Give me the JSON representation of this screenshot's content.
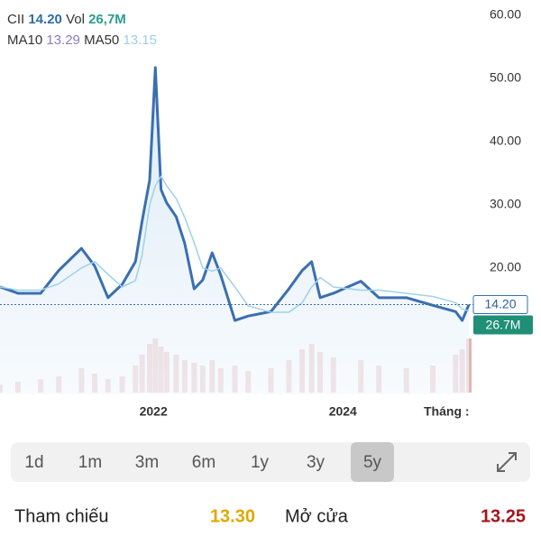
{
  "header": {
    "ticker": "CII",
    "price": "14.20",
    "vol_label": "Vol",
    "vol": "26,7M",
    "ma10_label": "MA10",
    "ma10": "13.29",
    "ma50_label": "MA50",
    "ma50": "13.15"
  },
  "chart_data": {
    "type": "line",
    "x": [
      2020.38,
      2020.57,
      2020.81,
      2021.0,
      2021.24,
      2021.38,
      2021.52,
      2021.67,
      2021.81,
      2021.88,
      2021.96,
      2022.02,
      2022.08,
      2022.14,
      2022.24,
      2022.33,
      2022.43,
      2022.52,
      2022.62,
      2022.71,
      2022.86,
      2023.0,
      2023.24,
      2023.43,
      2023.57,
      2023.67,
      2023.76,
      2023.9,
      2024.19,
      2024.38,
      2024.67,
      2024.95,
      2025.19,
      2025.26,
      2025.33
    ],
    "series": [
      {
        "name": "CII",
        "color": "#3a6fb0",
        "values": [
          17,
          16,
          16,
          19.6,
          23.1,
          20.3,
          15.3,
          17.4,
          21,
          27.4,
          33.9,
          51.7,
          32.4,
          30.3,
          28.1,
          23.9,
          16.7,
          18.1,
          22.4,
          18.9,
          11.7,
          12.4,
          13.1,
          16.7,
          19.6,
          21,
          15.3,
          16,
          17.9,
          15.3,
          15.3,
          14.1,
          13.1,
          11.7,
          14.2
        ]
      },
      {
        "name": "MA50",
        "color": "#9fd0ea",
        "values": [
          17,
          16.5,
          16.5,
          17.5,
          20,
          21,
          19,
          17,
          18,
          22,
          30,
          33,
          34.5,
          33,
          31,
          28,
          24,
          20,
          19.5,
          20,
          17,
          14,
          13,
          13,
          14.5,
          17,
          18.5,
          17,
          16.5,
          16.5,
          16,
          15.5,
          14.5,
          13.5,
          13.2
        ]
      }
    ],
    "volume": {
      "color": "#d9a3a3",
      "values": [
        3,
        4,
        5,
        6,
        9,
        7,
        5,
        6,
        10,
        14,
        18,
        20,
        17,
        15,
        14,
        12,
        11,
        10,
        12,
        9,
        10,
        8,
        9,
        12,
        16,
        18,
        15,
        13,
        12,
        10,
        9,
        10,
        14,
        16,
        20
      ]
    },
    "xlim": [
      2020.38,
      2025.33
    ],
    "xticks": [
      2022,
      2024
    ],
    "x_axis_label": "Tháng :",
    "ylim": [
      0,
      62.4
    ],
    "yticks": [
      {
        "value": 20,
        "label": "20.00"
      },
      {
        "value": 30,
        "label": "30.00"
      },
      {
        "value": 40,
        "label": "40.00"
      },
      {
        "value": 50,
        "label": "50.00"
      },
      {
        "value": 60,
        "label": "60.00"
      }
    ],
    "last_price": {
      "value": 14.2,
      "label": "14.20"
    },
    "volume_tag": "26.7M"
  },
  "range_tabs": [
    "1d",
    "1m",
    "3m",
    "6m",
    "1y",
    "3y",
    "5y"
  ],
  "selected_tab": 6,
  "quotes": [
    {
      "label": "Tham chiếu",
      "value": "13.30",
      "color": "#e0a800"
    },
    {
      "label": "Mở cửa",
      "value": "13.25",
      "color": "#a3151b"
    }
  ]
}
